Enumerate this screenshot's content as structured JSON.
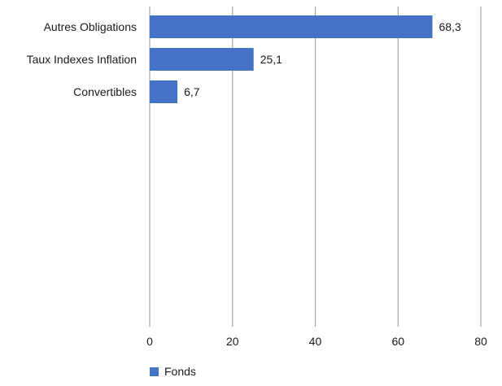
{
  "chart_data": {
    "type": "bar",
    "orientation": "horizontal",
    "categories": [
      "Autres Obligations",
      "Taux Indexes Inflation",
      "Convertibles"
    ],
    "series": [
      {
        "name": "Fonds",
        "values": [
          68.3,
          25.1,
          6.7
        ],
        "value_labels": [
          "68,3",
          "25,1",
          "6,7"
        ]
      }
    ],
    "xlim": [
      0,
      80
    ],
    "x_ticks": [
      0,
      20,
      40,
      60,
      80
    ],
    "x_tick_labels": [
      "0",
      "20",
      "40",
      "60",
      "80"
    ],
    "grid": true,
    "legend_position": "bottom-left",
    "colors": {
      "series": "#4472c4",
      "grid": "#a6a6a6"
    }
  }
}
